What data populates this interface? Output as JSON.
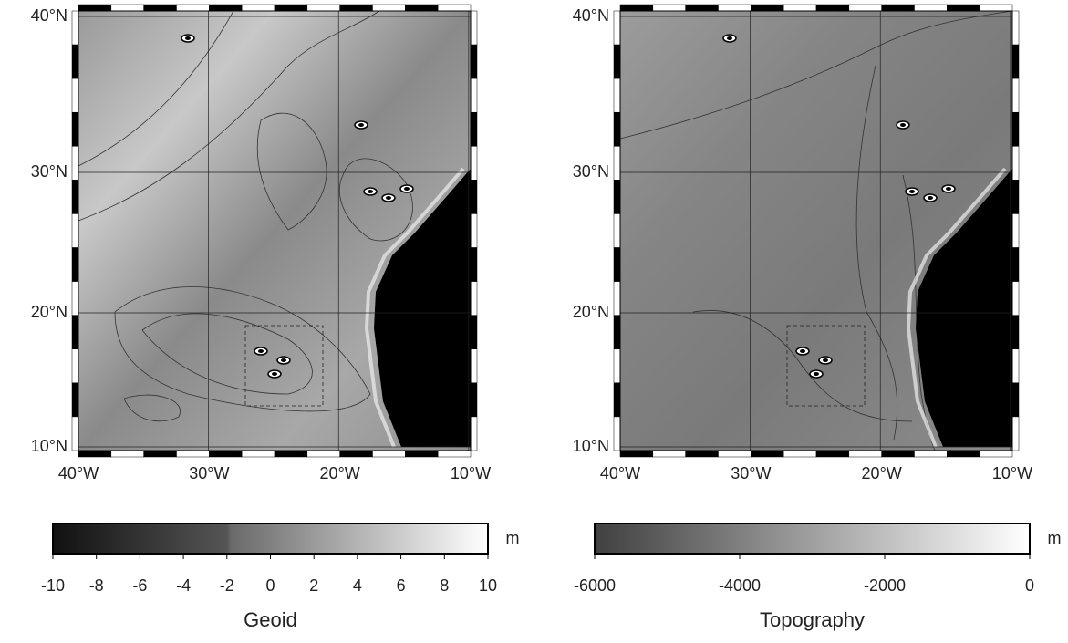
{
  "maps": [
    {
      "lat_labels": [
        "40°N",
        "30°N",
        "20°N",
        "10°N"
      ],
      "lon_labels": [
        "40°W",
        "30°W",
        "20°W",
        "10°W"
      ],
      "colorbar": {
        "label": "Geoid",
        "unit": "m",
        "range": [
          -10,
          10
        ],
        "ticks": [
          -10,
          -8,
          -6,
          -4,
          -2,
          0,
          2,
          4,
          6,
          8,
          10
        ]
      }
    },
    {
      "lat_labels": [
        "40°N",
        "30°N",
        "20°N",
        "10°N"
      ],
      "lon_labels": [
        "40°W",
        "30°W",
        "20°W",
        "10°W"
      ],
      "colorbar": {
        "label": "Topography",
        "unit": "m",
        "range": [
          -6000,
          0
        ],
        "ticks": [
          -6000,
          -4000,
          -2000,
          0
        ]
      }
    }
  ]
}
